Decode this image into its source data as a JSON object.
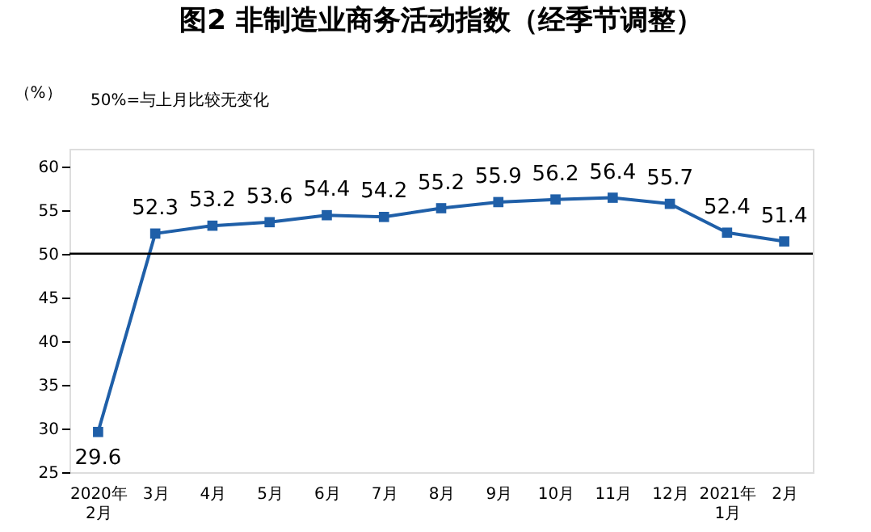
{
  "chart_data": {
    "type": "line",
    "title": "图2  非制造业商务活动指数（经季节调整）",
    "ylabel": "（%）",
    "annotations": [
      "50%=与上月比较无变化"
    ],
    "categories": [
      "2020年\n2月",
      "3月",
      "4月",
      "5月",
      "6月",
      "7月",
      "8月",
      "9月",
      "10月",
      "11月",
      "12月",
      "2021年\n1月",
      "2月"
    ],
    "series": [
      {
        "color": "#1f5fa8",
        "values": [
          29.6,
          52.3,
          53.2,
          53.6,
          54.4,
          54.2,
          55.2,
          55.9,
          56.2,
          56.4,
          55.7,
          52.4,
          51.4
        ]
      }
    ],
    "ylim": [
      25,
      62
    ],
    "yticks": [
      25,
      30,
      35,
      40,
      45,
      50,
      55,
      60
    ],
    "ref_lines": [
      {
        "axis": "y",
        "value": 50,
        "color": "#000000",
        "line_style": "solid"
      }
    ],
    "data_labels": true,
    "marker": "square",
    "line_style": "solid",
    "grid": false
  }
}
